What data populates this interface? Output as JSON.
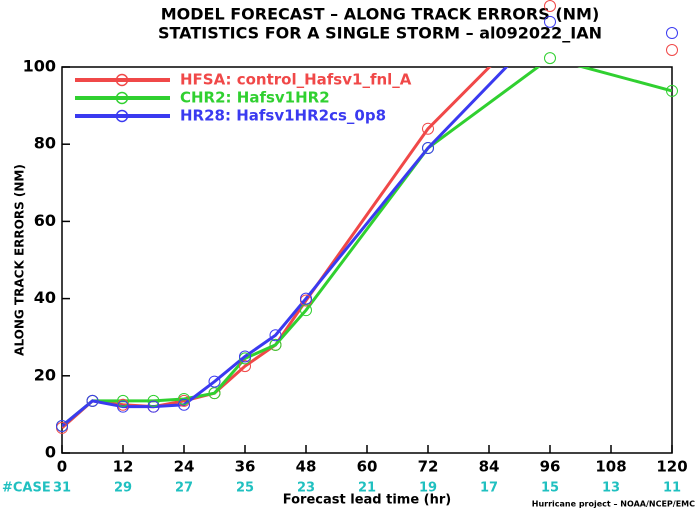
{
  "chart_data": {
    "type": "line",
    "title": "MODEL FORECAST – ALONG TRACK ERRORS (NM)",
    "subtitle": "STATISTICS FOR A SINGLE STORM – al092022_IAN",
    "x_label": "Forecast lead time (hr)",
    "y_label": "ALONG TRACK ERRORS (NM)",
    "x": [
      0,
      6,
      12,
      18,
      24,
      30,
      36,
      42,
      48,
      72,
      96,
      120
    ],
    "series": [
      {
        "name": "HFSA: control_Hafsv1_fnl_A",
        "color": "#f04848",
        "values": [
          6.5,
          13.5,
          12.5,
          12,
          13.5,
          15.5,
          22.5,
          28,
          39.5,
          84,
          115.8,
          104.4
        ]
      },
      {
        "name": "CHR2: Hafsv1HR2",
        "color": "#30d030",
        "values": [
          7,
          13.5,
          13.5,
          13.5,
          14,
          15.5,
          24.5,
          28,
          37,
          79,
          102.3,
          93.8
        ]
      },
      {
        "name": "HR28: Hafsv1HR2cs_0p8",
        "color": "#3a3af0",
        "values": [
          7,
          13.5,
          12,
          12,
          12.5,
          18.5,
          25,
          30.5,
          40,
          79,
          111.7,
          108.8
        ]
      }
    ],
    "xlim": [
      0,
      120
    ],
    "xticks": [
      0,
      12,
      24,
      36,
      48,
      60,
      72,
      84,
      96,
      108,
      120
    ],
    "ylim": [
      0,
      100
    ],
    "yticks": [
      0,
      20,
      40,
      60,
      80,
      100
    ],
    "case_label": "#CASE",
    "cases": [
      31,
      29,
      27,
      25,
      23,
      21,
      19,
      17,
      15,
      13,
      11
    ],
    "case_color": "#20c0c0",
    "footnote": "Hurricane project – NOAA/NCEP/EMC"
  }
}
